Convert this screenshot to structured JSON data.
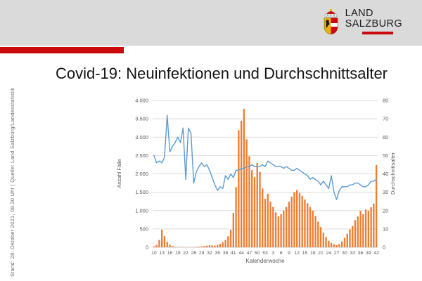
{
  "header": {
    "logo_line1": "LAND",
    "logo_line2": "SALZBURG"
  },
  "source_note": "Stand: 28. Oktober  2021, 08.30 Uhr  |  Quelle: Land Salzburg/Landesstatistik",
  "colors": {
    "accent_red": "#c9090c",
    "header_gray": "#dadada",
    "bar_orange": "#ED7D31",
    "line_blue": "#5B9BD5",
    "gridline": "#dcdcdc",
    "axis_text": "#595959"
  },
  "chart_data": {
    "type": "combo",
    "title": "Covid-19: Neuinfektionen und Durchschnittsalter",
    "xlabel": "Kalenderwoche",
    "ylabel_left": "Anzahl Fälle",
    "ylabel_right": "Durchschnittsalter",
    "ylim_left": [
      0,
      4000
    ],
    "ylim_right": [
      0,
      80
    ],
    "yticks_left": [
      "0",
      "500",
      "1.000",
      "1.500",
      "2.000",
      "2.500",
      "3.000",
      "3.500",
      "4.000"
    ],
    "yticks_right": [
      "0",
      "10",
      "20",
      "30",
      "40",
      "50",
      "60",
      "70",
      "80"
    ],
    "grid": true,
    "legend": "none",
    "x_label_every": 3,
    "categories": [
      "10",
      "11",
      "12",
      "13",
      "14",
      "15",
      "16",
      "17",
      "18",
      "19",
      "20",
      "21",
      "22",
      "24",
      "25",
      "26",
      "27",
      "28",
      "29",
      "30",
      "31",
      "32",
      "33",
      "34",
      "35",
      "36",
      "37",
      "38",
      "39",
      "40",
      "41",
      "42",
      "43",
      "44",
      "45",
      "46",
      "47",
      "48",
      "49",
      "50",
      "51",
      "52",
      "53",
      "1",
      "2",
      "3",
      "4",
      "5",
      "6",
      "7",
      "8",
      "9",
      "10",
      "11",
      "12",
      "13",
      "14",
      "15",
      "16",
      "17",
      "18",
      "19",
      "20",
      "21",
      "22",
      "23",
      "24",
      "25",
      "26",
      "27",
      "28",
      "29",
      "30",
      "31",
      "32",
      "33",
      "34",
      "35",
      "36",
      "37",
      "38",
      "39",
      "40",
      "41",
      "42"
    ],
    "series": [
      {
        "name": "Anzahl Fälle",
        "type": "bar",
        "axis": "left",
        "values": [
          25,
          60,
          200,
          480,
          310,
          150,
          70,
          35,
          15,
          10,
          8,
          6,
          5,
          5,
          6,
          8,
          12,
          18,
          25,
          35,
          45,
          55,
          50,
          45,
          60,
          95,
          140,
          200,
          300,
          480,
          940,
          1640,
          3190,
          3450,
          3770,
          2940,
          2480,
          2100,
          1910,
          2300,
          2050,
          1600,
          1320,
          1460,
          1245,
          1100,
          950,
          840,
          900,
          1000,
          1100,
          1240,
          1380,
          1500,
          1560,
          1480,
          1400,
          1300,
          1200,
          1100,
          1000,
          850,
          700,
          550,
          400,
          280,
          180,
          120,
          80,
          60,
          90,
          160,
          260,
          370,
          490,
          580,
          740,
          840,
          990,
          900,
          1030,
          995,
          1090,
          1190,
          2240
        ]
      },
      {
        "name": "Durchschnittsalter",
        "type": "line",
        "axis": "right",
        "values": [
          50,
          46,
          47,
          46,
          49,
          72,
          52,
          55,
          57,
          60,
          57,
          65,
          37,
          65,
          62,
          35,
          41,
          44,
          46,
          44,
          45,
          42,
          38,
          34,
          31,
          33,
          32,
          39,
          37,
          40,
          38,
          42,
          42,
          43,
          43,
          44,
          44,
          45,
          44,
          44,
          44,
          45,
          44,
          47,
          46,
          45,
          44,
          44,
          44,
          43,
          44,
          43,
          42,
          42,
          43,
          42,
          41,
          40,
          39,
          37,
          38,
          37,
          36,
          34,
          36,
          34,
          32,
          39,
          30,
          26,
          31,
          33,
          33,
          33,
          34,
          34,
          35,
          35,
          34,
          33,
          33,
          34,
          36,
          36,
          37
        ]
      }
    ]
  }
}
